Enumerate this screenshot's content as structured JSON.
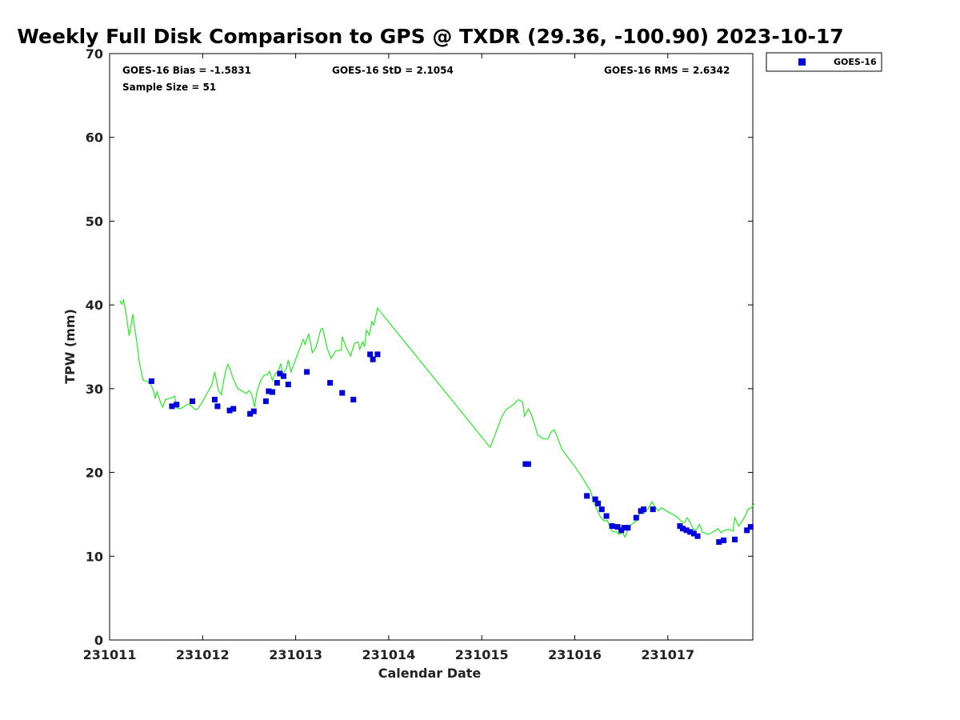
{
  "chart_data": {
    "type": "scatter",
    "title": "Weekly Full Disk Comparison to GPS @ TXDR (29.36, -100.90) 2023-10-17",
    "xlabel": "Calendar Date",
    "ylabel": "TPW (mm)",
    "xlim": [
      0,
      6.93
    ],
    "ylim": [
      0,
      70
    ],
    "x_ticks": [
      {
        "value": 0,
        "label": "231011"
      },
      {
        "value": 1,
        "label": "231012"
      },
      {
        "value": 2,
        "label": "231013"
      },
      {
        "value": 3,
        "label": "231014"
      },
      {
        "value": 4,
        "label": "231015"
      },
      {
        "value": 5,
        "label": "231016"
      },
      {
        "value": 6,
        "label": "231017"
      }
    ],
    "y_ticks": [
      0,
      10,
      20,
      30,
      40,
      50,
      60,
      70
    ],
    "stats": {
      "bias": "GOES-16 Bias = -1.5831",
      "std": "GOES-16 StD = 2.1054",
      "rms": "GOES-16 RMS = 2.6342",
      "sample": "Sample Size = 51"
    },
    "legend": {
      "position": "top-right",
      "label": "GOES-16"
    },
    "series": [
      {
        "name": "GOES-16",
        "kind": "markers",
        "color": "#0000dd",
        "points": [
          [
            0.45,
            30.9
          ],
          [
            0.67,
            27.9
          ],
          [
            0.72,
            28.1
          ],
          [
            0.89,
            28.5
          ],
          [
            1.13,
            28.7
          ],
          [
            1.16,
            27.9
          ],
          [
            1.29,
            27.4
          ],
          [
            1.33,
            27.6
          ],
          [
            1.51,
            27.0
          ],
          [
            1.55,
            27.3
          ],
          [
            1.68,
            28.5
          ],
          [
            1.71,
            29.7
          ],
          [
            1.75,
            29.6
          ],
          [
            1.8,
            30.7
          ],
          [
            1.83,
            31.8
          ],
          [
            1.87,
            31.5
          ],
          [
            1.92,
            30.5
          ],
          [
            2.12,
            32.0
          ],
          [
            2.37,
            30.7
          ],
          [
            2.5,
            29.5
          ],
          [
            2.62,
            28.7
          ],
          [
            2.8,
            34.1
          ],
          [
            2.83,
            33.5
          ],
          [
            2.88,
            34.1
          ],
          [
            4.47,
            21.0
          ],
          [
            4.5,
            21.0
          ],
          [
            5.13,
            17.2
          ],
          [
            5.22,
            16.8
          ],
          [
            5.25,
            16.3
          ],
          [
            5.29,
            15.6
          ],
          [
            5.34,
            14.8
          ],
          [
            5.4,
            13.6
          ],
          [
            5.46,
            13.5
          ],
          [
            5.5,
            13.1
          ],
          [
            5.53,
            13.4
          ],
          [
            5.57,
            13.4
          ],
          [
            5.66,
            14.6
          ],
          [
            5.71,
            15.4
          ],
          [
            5.74,
            15.6
          ],
          [
            5.84,
            15.6
          ],
          [
            6.13,
            13.6
          ],
          [
            6.16,
            13.3
          ],
          [
            6.2,
            13.1
          ],
          [
            6.24,
            12.9
          ],
          [
            6.28,
            12.7
          ],
          [
            6.32,
            12.4
          ],
          [
            6.55,
            11.7
          ],
          [
            6.6,
            11.9
          ],
          [
            6.72,
            12.0
          ],
          [
            6.85,
            13.1
          ],
          [
            6.89,
            13.5
          ]
        ]
      },
      {
        "name": "",
        "kind": "line",
        "color": "#22ee22",
        "points": [
          [
            0.11,
            40.5
          ],
          [
            0.13,
            40.1
          ],
          [
            0.15,
            40.6
          ],
          [
            0.18,
            38.8
          ],
          [
            0.21,
            36.3
          ],
          [
            0.23,
            37.5
          ],
          [
            0.25,
            38.9
          ],
          [
            0.27,
            37.2
          ],
          [
            0.29,
            35.8
          ],
          [
            0.32,
            33.1
          ],
          [
            0.36,
            31.0
          ],
          [
            0.4,
            30.9
          ],
          [
            0.44,
            30.6
          ],
          [
            0.47,
            29.8
          ],
          [
            0.49,
            28.9
          ],
          [
            0.51,
            29.6
          ],
          [
            0.55,
            28.3
          ],
          [
            0.57,
            27.8
          ],
          [
            0.6,
            28.7
          ],
          [
            0.66,
            28.9
          ],
          [
            0.7,
            29.1
          ],
          [
            0.72,
            27.7
          ],
          [
            0.76,
            27.6
          ],
          [
            0.85,
            28.2
          ],
          [
            0.92,
            27.5
          ],
          [
            0.95,
            27.6
          ],
          [
            1.0,
            28.5
          ],
          [
            1.06,
            29.7
          ],
          [
            1.1,
            30.5
          ],
          [
            1.13,
            32.0
          ],
          [
            1.17,
            29.8
          ],
          [
            1.2,
            29.3
          ],
          [
            1.24,
            31.8
          ],
          [
            1.27,
            32.9
          ],
          [
            1.29,
            32.5
          ],
          [
            1.33,
            31.1
          ],
          [
            1.38,
            30.0
          ],
          [
            1.43,
            29.7
          ],
          [
            1.47,
            29.4
          ],
          [
            1.5,
            29.8
          ],
          [
            1.53,
            29.3
          ],
          [
            1.56,
            27.8
          ],
          [
            1.58,
            29.5
          ],
          [
            1.62,
            30.9
          ],
          [
            1.66,
            31.6
          ],
          [
            1.7,
            31.7
          ],
          [
            1.72,
            32.1
          ],
          [
            1.75,
            31.0
          ],
          [
            1.78,
            31.8
          ],
          [
            1.81,
            32.0
          ],
          [
            1.84,
            33.0
          ],
          [
            1.86,
            31.7
          ],
          [
            1.9,
            32.4
          ],
          [
            1.92,
            33.4
          ],
          [
            1.95,
            32.0
          ],
          [
            2.0,
            33.5
          ],
          [
            2.08,
            35.9
          ],
          [
            2.1,
            35.3
          ],
          [
            2.14,
            36.5
          ],
          [
            2.18,
            34.3
          ],
          [
            2.22,
            35.0
          ],
          [
            2.27,
            37.1
          ],
          [
            2.29,
            37.2
          ],
          [
            2.34,
            34.8
          ],
          [
            2.38,
            33.6
          ],
          [
            2.43,
            34.5
          ],
          [
            2.49,
            34.6
          ],
          [
            2.5,
            36.2
          ],
          [
            2.54,
            35.0
          ],
          [
            2.59,
            33.9
          ],
          [
            2.63,
            35.4
          ],
          [
            2.67,
            35.6
          ],
          [
            2.69,
            34.7
          ],
          [
            2.72,
            35.6
          ],
          [
            2.74,
            35.0
          ],
          [
            2.76,
            37.0
          ],
          [
            2.79,
            36.4
          ],
          [
            2.82,
            38.0
          ],
          [
            2.84,
            37.6
          ],
          [
            2.88,
            39.6
          ],
          [
            4.09,
            23.0
          ],
          [
            4.15,
            24.7
          ],
          [
            4.21,
            26.5
          ],
          [
            4.26,
            27.5
          ],
          [
            4.34,
            28.1
          ],
          [
            4.39,
            28.7
          ],
          [
            4.44,
            28.4
          ],
          [
            4.46,
            26.7
          ],
          [
            4.5,
            27.6
          ],
          [
            4.53,
            27.0
          ],
          [
            4.57,
            25.7
          ],
          [
            4.6,
            24.5
          ],
          [
            4.66,
            24.0
          ],
          [
            4.71,
            24.0
          ],
          [
            4.75,
            24.9
          ],
          [
            4.78,
            25.1
          ],
          [
            4.82,
            24.0
          ],
          [
            4.86,
            22.8
          ],
          [
            5.0,
            20.7
          ],
          [
            5.08,
            19.4
          ],
          [
            5.13,
            18.5
          ],
          [
            5.17,
            17.8
          ],
          [
            5.2,
            16.6
          ],
          [
            5.23,
            15.8
          ],
          [
            5.28,
            14.6
          ],
          [
            5.32,
            14.2
          ],
          [
            5.35,
            14.3
          ],
          [
            5.38,
            13.4
          ],
          [
            5.41,
            12.9
          ],
          [
            5.45,
            12.9
          ],
          [
            5.48,
            12.6
          ],
          [
            5.51,
            12.9
          ],
          [
            5.54,
            12.3
          ],
          [
            5.57,
            13.1
          ],
          [
            5.61,
            13.8
          ],
          [
            5.66,
            14.2
          ],
          [
            5.7,
            15.1
          ],
          [
            5.74,
            15.1
          ],
          [
            5.79,
            15.7
          ],
          [
            5.83,
            16.5
          ],
          [
            5.86,
            15.9
          ],
          [
            5.9,
            15.4
          ],
          [
            5.93,
            15.8
          ],
          [
            6.0,
            15.3
          ],
          [
            6.1,
            14.7
          ],
          [
            6.14,
            14.2
          ],
          [
            6.18,
            14.0
          ],
          [
            6.21,
            14.6
          ],
          [
            6.25,
            13.8
          ],
          [
            6.28,
            13.1
          ],
          [
            6.31,
            13.2
          ],
          [
            6.34,
            13.8
          ],
          [
            6.37,
            12.9
          ],
          [
            6.43,
            12.6
          ],
          [
            6.5,
            13.0
          ],
          [
            6.54,
            13.3
          ],
          [
            6.57,
            12.8
          ],
          [
            6.61,
            13.1
          ],
          [
            6.66,
            13.2
          ],
          [
            6.7,
            13.0
          ],
          [
            6.72,
            14.6
          ],
          [
            6.76,
            13.6
          ],
          [
            6.8,
            14.2
          ],
          [
            6.84,
            15.0
          ],
          [
            6.86,
            15.6
          ],
          [
            6.9,
            15.8
          ],
          [
            6.93,
            16.3
          ]
        ]
      }
    ]
  }
}
